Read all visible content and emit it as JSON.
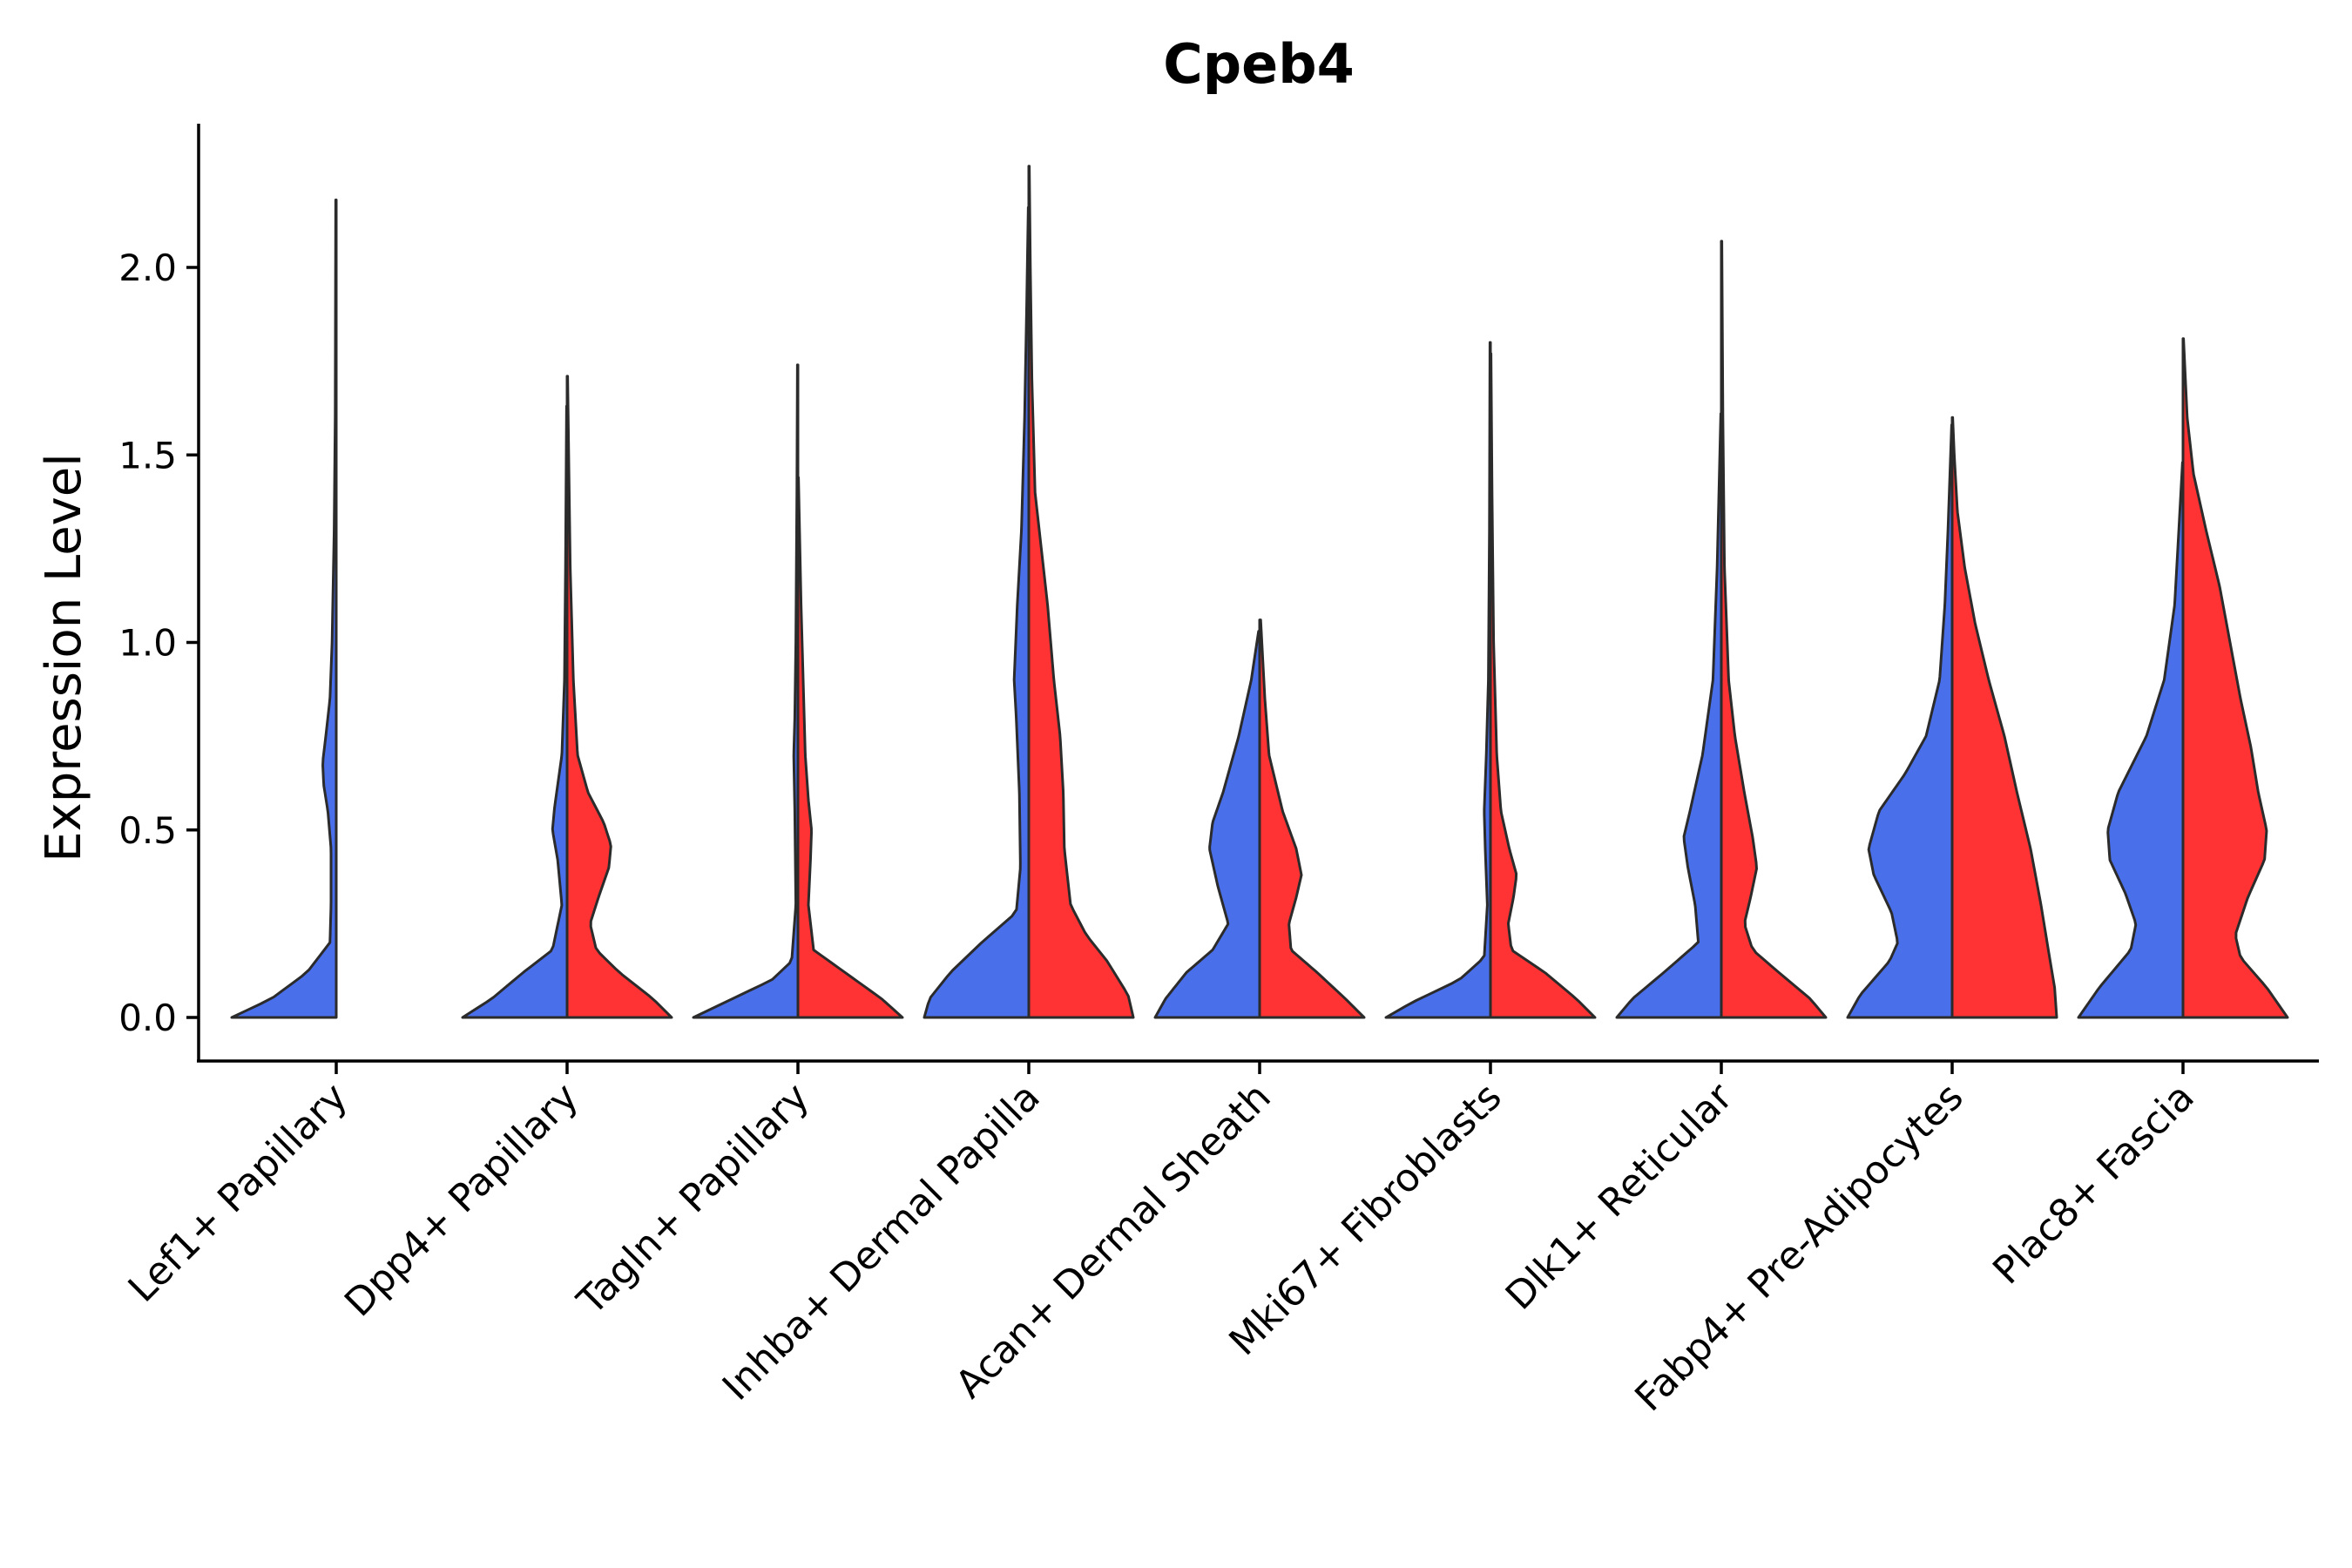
{
  "chart_data": {
    "type": "violin",
    "title": "Cpeb4",
    "xlabel": "",
    "ylabel": "Expression Level",
    "ylim": [
      -0.11,
      2.38
    ],
    "yticks": [
      0.0,
      0.5,
      1.0,
      1.5,
      2.0
    ],
    "ytick_labels": [
      "0.0",
      "0.5",
      "1.0",
      "1.5",
      "2.0"
    ],
    "grid": false,
    "legend": "none",
    "split": true,
    "categories": [
      "Lef1+ Papillary",
      "Dpp4+ Papillary",
      "Tagln+ Papillary",
      "Inhba+ Dermal Papilla",
      "Acan+ Dermal Sheath",
      "Mki67+ Fibroblasts",
      "Dlk1+ Reticular",
      "Fabp4+ Pre-Adipocytes",
      "Plac8+ Fascia"
    ],
    "series": [
      {
        "name": "blue",
        "color": "#4A6FEA",
        "max_values": [
          2.18,
          1.63,
          1.74,
          2.16,
          1.03,
          1.8,
          1.61,
          1.58,
          1.48
        ],
        "density_profiles": [
          [
            [
              0,
              1.0
            ],
            [
              0.05,
              0.62
            ],
            [
              0.12,
              0.28
            ],
            [
              0.2,
              0.06
            ],
            [
              0.3,
              0.05
            ],
            [
              0.45,
              0.05
            ],
            [
              0.55,
              0.08
            ],
            [
              0.62,
              0.12
            ],
            [
              0.68,
              0.13
            ],
            [
              0.75,
              0.1
            ],
            [
              0.85,
              0.06
            ],
            [
              1.0,
              0.04
            ],
            [
              1.3,
              0.02
            ],
            [
              1.6,
              0.01
            ],
            [
              2.18,
              0.005
            ]
          ],
          [
            [
              0,
              1.0
            ],
            [
              0.05,
              0.72
            ],
            [
              0.12,
              0.42
            ],
            [
              0.18,
              0.14
            ],
            [
              0.3,
              0.05
            ],
            [
              0.42,
              0.09
            ],
            [
              0.5,
              0.14
            ],
            [
              0.56,
              0.12
            ],
            [
              0.7,
              0.05
            ],
            [
              0.9,
              0.025
            ],
            [
              1.2,
              0.015
            ],
            [
              1.63,
              0.005
            ]
          ],
          [
            [
              0,
              1.0
            ],
            [
              0.04,
              0.7
            ],
            [
              0.1,
              0.25
            ],
            [
              0.15,
              0.06
            ],
            [
              0.3,
              0.02
            ],
            [
              0.55,
              0.03
            ],
            [
              0.7,
              0.04
            ],
            [
              0.8,
              0.03
            ],
            [
              1.0,
              0.02
            ],
            [
              1.4,
              0.01
            ],
            [
              1.74,
              0.005
            ]
          ],
          [
            [
              0,
              1.0
            ],
            [
              0.05,
              0.95
            ],
            [
              0.12,
              0.75
            ],
            [
              0.2,
              0.45
            ],
            [
              0.28,
              0.12
            ],
            [
              0.4,
              0.08
            ],
            [
              0.6,
              0.09
            ],
            [
              0.8,
              0.12
            ],
            [
              0.9,
              0.14
            ],
            [
              1.1,
              0.11
            ],
            [
              1.3,
              0.07
            ],
            [
              1.6,
              0.04
            ],
            [
              1.9,
              0.02
            ],
            [
              2.16,
              0.005
            ]
          ],
          [
            [
              0,
              1.0
            ],
            [
              0.05,
              0.9
            ],
            [
              0.12,
              0.7
            ],
            [
              0.18,
              0.45
            ],
            [
              0.25,
              0.3
            ],
            [
              0.35,
              0.4
            ],
            [
              0.45,
              0.48
            ],
            [
              0.52,
              0.45
            ],
            [
              0.6,
              0.35
            ],
            [
              0.75,
              0.2
            ],
            [
              0.9,
              0.08
            ],
            [
              1.03,
              0.01
            ]
          ],
          [
            [
              0,
              1.0
            ],
            [
              0.04,
              0.75
            ],
            [
              0.1,
              0.3
            ],
            [
              0.16,
              0.06
            ],
            [
              0.3,
              0.03
            ],
            [
              0.45,
              0.05
            ],
            [
              0.55,
              0.06
            ],
            [
              0.7,
              0.04
            ],
            [
              0.9,
              0.02
            ],
            [
              1.3,
              0.01
            ],
            [
              1.8,
              0.005
            ]
          ],
          [
            [
              0,
              1.0
            ],
            [
              0.05,
              0.85
            ],
            [
              0.12,
              0.55
            ],
            [
              0.2,
              0.22
            ],
            [
              0.3,
              0.25
            ],
            [
              0.4,
              0.32
            ],
            [
              0.48,
              0.36
            ],
            [
              0.55,
              0.3
            ],
            [
              0.7,
              0.18
            ],
            [
              0.9,
              0.08
            ],
            [
              1.2,
              0.04
            ],
            [
              1.61,
              0.005
            ]
          ],
          [
            [
              0,
              1.0
            ],
            [
              0.06,
              0.88
            ],
            [
              0.15,
              0.6
            ],
            [
              0.2,
              0.52
            ],
            [
              0.28,
              0.58
            ],
            [
              0.38,
              0.75
            ],
            [
              0.45,
              0.8
            ],
            [
              0.55,
              0.7
            ],
            [
              0.65,
              0.45
            ],
            [
              0.75,
              0.25
            ],
            [
              0.9,
              0.12
            ],
            [
              1.1,
              0.07
            ],
            [
              1.3,
              0.04
            ],
            [
              1.58,
              0.005
            ]
          ],
          [
            [
              0,
              1.0
            ],
            [
              0.08,
              0.8
            ],
            [
              0.18,
              0.5
            ],
            [
              0.25,
              0.45
            ],
            [
              0.33,
              0.55
            ],
            [
              0.42,
              0.7
            ],
            [
              0.5,
              0.72
            ],
            [
              0.6,
              0.62
            ],
            [
              0.75,
              0.35
            ],
            [
              0.9,
              0.18
            ],
            [
              1.1,
              0.08
            ],
            [
              1.3,
              0.04
            ],
            [
              1.48,
              0.005
            ]
          ]
        ]
      },
      {
        "name": "red",
        "color": "#FF3333",
        "max_values": [
          null,
          1.71,
          1.44,
          2.27,
          1.06,
          1.77,
          2.07,
          1.6,
          1.81
        ],
        "density_profiles": [
          null,
          [
            [
              0,
              1.0
            ],
            [
              0.05,
              0.82
            ],
            [
              0.12,
              0.5
            ],
            [
              0.18,
              0.28
            ],
            [
              0.25,
              0.22
            ],
            [
              0.32,
              0.3
            ],
            [
              0.4,
              0.4
            ],
            [
              0.46,
              0.42
            ],
            [
              0.52,
              0.35
            ],
            [
              0.6,
              0.2
            ],
            [
              0.7,
              0.1
            ],
            [
              0.9,
              0.06
            ],
            [
              1.2,
              0.03
            ],
            [
              1.71,
              0.005
            ]
          ],
          [
            [
              0,
              1.0
            ],
            [
              0.05,
              0.8
            ],
            [
              0.12,
              0.45
            ],
            [
              0.18,
              0.15
            ],
            [
              0.3,
              0.1
            ],
            [
              0.42,
              0.12
            ],
            [
              0.5,
              0.13
            ],
            [
              0.58,
              0.1
            ],
            [
              0.7,
              0.07
            ],
            [
              0.9,
              0.05
            ],
            [
              1.1,
              0.03
            ],
            [
              1.44,
              0.005
            ]
          ],
          [
            [
              0,
              1.0
            ],
            [
              0.06,
              0.95
            ],
            [
              0.15,
              0.75
            ],
            [
              0.22,
              0.55
            ],
            [
              0.3,
              0.4
            ],
            [
              0.45,
              0.34
            ],
            [
              0.6,
              0.33
            ],
            [
              0.75,
              0.3
            ],
            [
              0.9,
              0.24
            ],
            [
              1.1,
              0.18
            ],
            [
              1.25,
              0.12
            ],
            [
              1.4,
              0.06
            ],
            [
              1.7,
              0.03
            ],
            [
              2.0,
              0.015
            ],
            [
              2.27,
              0.005
            ]
          ],
          [
            [
              0,
              1.0
            ],
            [
              0.05,
              0.82
            ],
            [
              0.12,
              0.55
            ],
            [
              0.18,
              0.3
            ],
            [
              0.25,
              0.28
            ],
            [
              0.32,
              0.35
            ],
            [
              0.38,
              0.4
            ],
            [
              0.45,
              0.35
            ],
            [
              0.55,
              0.22
            ],
            [
              0.7,
              0.09
            ],
            [
              0.85,
              0.05
            ],
            [
              1.06,
              0.01
            ]
          ],
          [
            [
              0,
              1.0
            ],
            [
              0.05,
              0.82
            ],
            [
              0.12,
              0.52
            ],
            [
              0.18,
              0.2
            ],
            [
              0.25,
              0.17
            ],
            [
              0.32,
              0.22
            ],
            [
              0.38,
              0.25
            ],
            [
              0.45,
              0.18
            ],
            [
              0.55,
              0.1
            ],
            [
              0.7,
              0.06
            ],
            [
              1.0,
              0.03
            ],
            [
              1.4,
              0.015
            ],
            [
              1.77,
              0.005
            ]
          ],
          [
            [
              0,
              1.0
            ],
            [
              0.05,
              0.85
            ],
            [
              0.12,
              0.55
            ],
            [
              0.18,
              0.3
            ],
            [
              0.25,
              0.22
            ],
            [
              0.32,
              0.28
            ],
            [
              0.4,
              0.34
            ],
            [
              0.48,
              0.3
            ],
            [
              0.6,
              0.22
            ],
            [
              0.75,
              0.13
            ],
            [
              0.9,
              0.07
            ],
            [
              1.2,
              0.03
            ],
            [
              1.6,
              0.015
            ],
            [
              2.07,
              0.005
            ]
          ],
          [
            [
              0,
              1.0
            ],
            [
              0.08,
              0.98
            ],
            [
              0.18,
              0.92
            ],
            [
              0.3,
              0.85
            ],
            [
              0.45,
              0.75
            ],
            [
              0.6,
              0.62
            ],
            [
              0.75,
              0.5
            ],
            [
              0.9,
              0.35
            ],
            [
              1.05,
              0.22
            ],
            [
              1.2,
              0.12
            ],
            [
              1.35,
              0.05
            ],
            [
              1.5,
              0.02
            ],
            [
              1.6,
              0.005
            ]
          ],
          [
            [
              0,
              1.0
            ],
            [
              0.08,
              0.8
            ],
            [
              0.16,
              0.55
            ],
            [
              0.22,
              0.5
            ],
            [
              0.32,
              0.62
            ],
            [
              0.42,
              0.78
            ],
            [
              0.5,
              0.8
            ],
            [
              0.6,
              0.72
            ],
            [
              0.72,
              0.65
            ],
            [
              0.85,
              0.55
            ],
            [
              1.0,
              0.45
            ],
            [
              1.15,
              0.35
            ],
            [
              1.3,
              0.22
            ],
            [
              1.45,
              0.1
            ],
            [
              1.6,
              0.04
            ],
            [
              1.81,
              0.005
            ]
          ]
        ]
      }
    ]
  }
}
